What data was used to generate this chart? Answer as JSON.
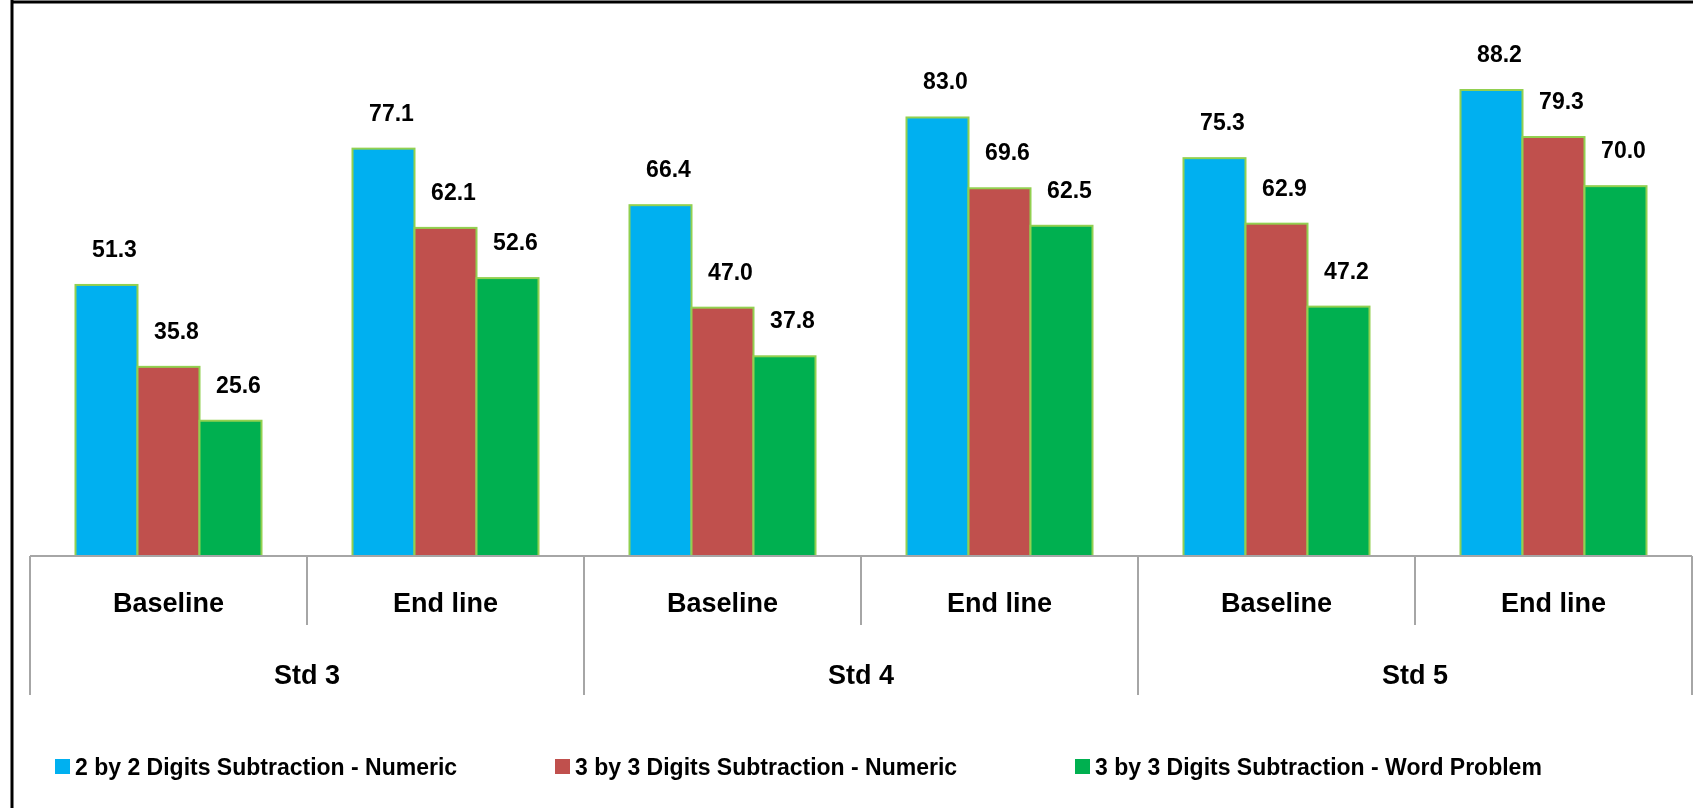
{
  "chart_data": {
    "type": "bar",
    "categories": [
      "Baseline",
      "End line",
      "Baseline",
      "End line",
      "Baseline",
      "End line"
    ],
    "series": [
      {
        "name": "2 by 2 Digits Subtraction - Numeric",
        "color": "#00b0f0",
        "values": [
          51.3,
          77.1,
          66.4,
          83.0,
          75.3,
          88.2
        ],
        "value_labels": [
          "51.3",
          "77.1",
          "66.4",
          "83.0",
          "75.3",
          "88.2"
        ]
      },
      {
        "name": "3 by 3 Digits Subtraction - Numeric",
        "color": "#c0504d",
        "values": [
          35.8,
          62.1,
          47.0,
          69.6,
          62.9,
          79.3
        ],
        "value_labels": [
          "35.8",
          "62.1",
          "47.0",
          "69.6",
          "62.9",
          "79.3"
        ]
      },
      {
        "name": "3 by 3 Digits Subtraction - Word Problem",
        "color": "#00b050",
        "values": [
          25.6,
          52.6,
          37.8,
          62.5,
          47.2,
          70.0
        ],
        "value_labels": [
          "25.6",
          "52.6",
          "37.8",
          "62.5",
          "47.2",
          "70.0"
        ]
      }
    ],
    "annotations": [
      "Std 3",
      "Std 4",
      "Std 5"
    ],
    "legend": "bottom"
  }
}
